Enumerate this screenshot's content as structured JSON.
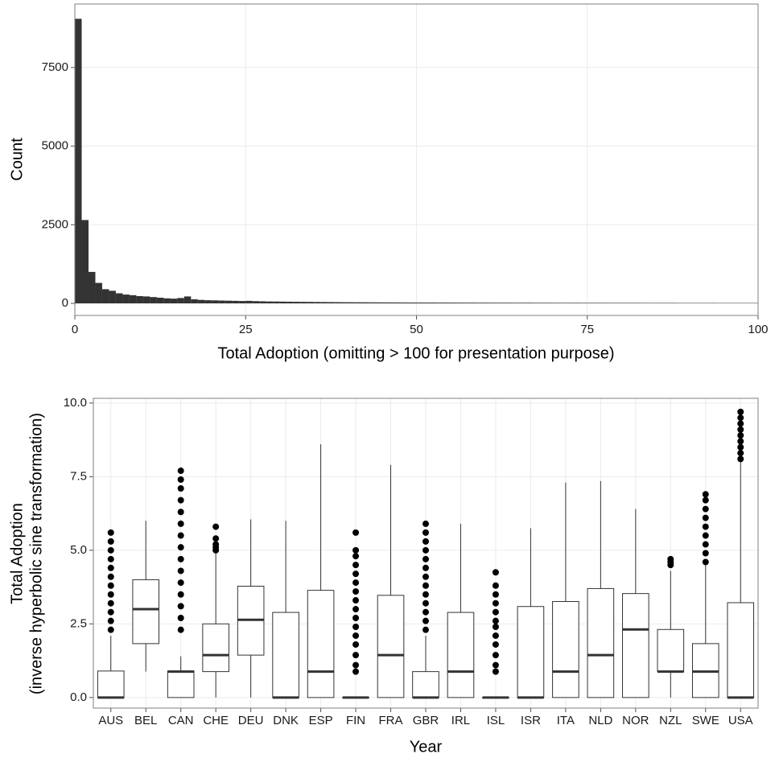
{
  "chart_data": [
    {
      "type": "histogram",
      "x_label": "Total Adoption (omitting > 100 for presentation purpose)",
      "y_label": "Count",
      "color": "#333333",
      "bins": [
        0,
        1,
        2,
        3,
        4,
        5,
        6,
        7,
        8,
        9,
        10,
        11,
        12,
        13,
        14,
        15,
        16,
        17,
        18,
        19,
        20,
        21,
        22,
        23,
        24,
        25,
        26,
        27,
        28,
        29,
        30,
        31,
        32,
        33,
        34,
        35,
        36,
        37,
        38,
        39,
        40,
        41,
        42,
        43,
        44,
        45,
        46,
        47,
        48,
        49,
        50,
        51,
        52,
        53,
        54,
        55,
        56,
        57,
        58,
        59,
        60,
        61,
        62,
        63,
        64,
        65,
        66,
        67,
        68,
        69,
        70,
        71,
        72,
        73,
        74,
        75,
        76,
        77,
        78,
        79,
        80,
        81,
        82,
        83,
        84,
        85,
        86,
        87,
        88,
        89,
        90,
        91,
        92,
        93,
        94,
        95,
        96,
        97,
        98,
        99,
        100
      ],
      "values": [
        9050,
        2650,
        1000,
        650,
        450,
        400,
        320,
        280,
        260,
        230,
        220,
        200,
        180,
        160,
        150,
        170,
        220,
        130,
        110,
        100,
        95,
        90,
        85,
        80,
        75,
        80,
        70,
        65,
        60,
        58,
        55,
        52,
        50,
        48,
        46,
        44,
        42,
        40,
        38,
        36,
        35,
        34,
        33,
        32,
        31,
        30,
        29,
        28,
        27,
        26,
        26,
        25,
        25,
        24,
        24,
        23,
        23,
        22,
        22,
        21,
        21,
        20,
        20,
        20,
        19,
        19,
        19,
        18,
        18,
        18,
        17,
        17,
        17,
        17,
        16,
        16,
        16,
        16,
        15,
        15,
        15,
        15,
        15,
        14,
        14,
        14,
        14,
        14,
        13,
        13,
        13,
        13,
        13,
        13,
        12,
        12,
        12,
        12,
        12,
        12
      ],
      "xlim": [
        0,
        100
      ],
      "xticks": [
        0,
        25,
        50,
        75,
        100
      ],
      "ylim": [
        -384,
        9520
      ],
      "yticks": [
        0,
        2500,
        5000,
        7500
      ],
      "grid": true
    },
    {
      "type": "box",
      "x_label": "Year",
      "y_label": [
        "Total Adoption",
        "(inverse hyperbolic sine transformation)"
      ],
      "color": "#333333",
      "categories": [
        "AUS",
        "BEL",
        "CAN",
        "CHE",
        "DEU",
        "DNK",
        "ESP",
        "FIN",
        "FRA",
        "GBR",
        "IRL",
        "ISL",
        "ISR",
        "ITA",
        "NLD",
        "NOR",
        "NZL",
        "SWE",
        "USA"
      ],
      "boxes": [
        {
          "low": 0,
          "q1": 0,
          "median": 0,
          "q3": 0.9,
          "high": 2.1,
          "outliers": [
            2.3,
            2.6,
            2.9,
            3.2,
            3.5,
            3.8,
            4.1,
            4.4,
            4.7,
            5.0,
            5.3,
            5.6
          ]
        },
        {
          "low": 0.88,
          "q1": 1.83,
          "median": 3.0,
          "q3": 4.0,
          "high": 6.0,
          "outliers": []
        },
        {
          "low": 0,
          "q1": 0,
          "median": 0.88,
          "q3": 0.9,
          "high": 1.4,
          "outliers": [
            2.3,
            2.7,
            3.1,
            3.5,
            3.9,
            4.3,
            4.7,
            5.1,
            5.5,
            5.9,
            6.3,
            6.7,
            7.1,
            7.4,
            7.7
          ]
        },
        {
          "low": 0,
          "q1": 0.88,
          "median": 1.44,
          "q3": 2.5,
          "high": 4.9,
          "outliers": [
            5.0,
            5.1,
            5.2,
            5.4,
            5.8
          ]
        },
        {
          "low": 0,
          "q1": 1.44,
          "median": 2.64,
          "q3": 3.78,
          "high": 6.05,
          "outliers": []
        },
        {
          "low": 0,
          "q1": 0,
          "median": 0,
          "q3": 2.89,
          "high": 6.0,
          "outliers": []
        },
        {
          "low": 0,
          "q1": 0,
          "median": 0.88,
          "q3": 3.64,
          "high": 8.6,
          "outliers": []
        },
        {
          "low": 0,
          "q1": 0,
          "median": 0,
          "q3": 0,
          "high": 0,
          "outliers": [
            0.88,
            1.1,
            1.44,
            1.8,
            2.1,
            2.4,
            2.7,
            3.0,
            3.3,
            3.6,
            3.9,
            4.2,
            4.5,
            4.8,
            5.0,
            5.6
          ]
        },
        {
          "low": 0,
          "q1": 0,
          "median": 1.44,
          "q3": 3.47,
          "high": 7.9,
          "outliers": []
        },
        {
          "low": 0,
          "q1": 0,
          "median": 0,
          "q3": 0.88,
          "high": 2.1,
          "outliers": [
            2.3,
            2.6,
            2.9,
            3.2,
            3.5,
            3.8,
            4.1,
            4.4,
            4.7,
            5.0,
            5.3,
            5.6,
            5.9
          ]
        },
        {
          "low": 0,
          "q1": 0,
          "median": 0.88,
          "q3": 2.89,
          "high": 5.9,
          "outliers": []
        },
        {
          "low": 0,
          "q1": 0,
          "median": 0,
          "q3": 0,
          "high": 0,
          "outliers": [
            0.88,
            1.1,
            1.44,
            1.8,
            2.1,
            2.4,
            2.6,
            2.9,
            3.2,
            3.5,
            3.8,
            4.25
          ]
        },
        {
          "low": 0,
          "q1": 0,
          "median": 0,
          "q3": 3.09,
          "high": 5.75,
          "outliers": []
        },
        {
          "low": 0,
          "q1": 0,
          "median": 0.88,
          "q3": 3.26,
          "high": 7.3,
          "outliers": []
        },
        {
          "low": 0,
          "q1": 0,
          "median": 1.44,
          "q3": 3.7,
          "high": 7.35,
          "outliers": []
        },
        {
          "low": 0,
          "q1": 0,
          "median": 2.31,
          "q3": 3.53,
          "high": 6.4,
          "outliers": []
        },
        {
          "low": 0,
          "q1": 0.88,
          "median": 0.88,
          "q3": 2.31,
          "high": 4.3,
          "outliers": [
            4.5,
            4.6,
            4.7
          ]
        },
        {
          "low": 0,
          "q1": 0,
          "median": 0.88,
          "q3": 1.83,
          "high": 4.5,
          "outliers": [
            4.6,
            4.9,
            5.2,
            5.5,
            5.8,
            6.1,
            6.4,
            6.7,
            6.9
          ]
        },
        {
          "low": 0,
          "q1": 0,
          "median": 0,
          "q3": 3.22,
          "high": 8.0,
          "outliers": [
            8.1,
            8.3,
            8.5,
            8.7,
            8.9,
            9.1,
            9.3,
            9.5,
            9.7
          ]
        }
      ],
      "ylim": [
        -0.36,
        10.16
      ],
      "yticks": [
        {
          "value": 0,
          "label": "0.0"
        },
        2.5,
        {
          "value": 5,
          "label": "5.0"
        },
        7.5,
        {
          "value": 10,
          "label": "10.0"
        }
      ],
      "grid": true
    }
  ]
}
